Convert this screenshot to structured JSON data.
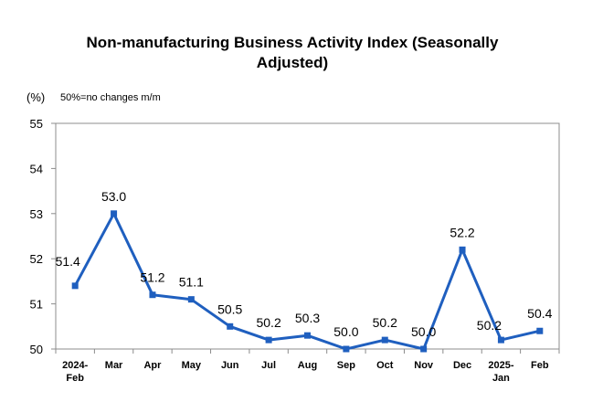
{
  "chart_data": {
    "type": "line",
    "title_line1": "Non-manufacturing Business Activity Index (Seasonally",
    "title_line2": "Adjusted)",
    "ylabel": "(%)",
    "note": "50%=no changes m/m",
    "ylim": [
      50,
      55
    ],
    "yticks": [
      "55",
      "54",
      "53",
      "52",
      "51",
      "50"
    ],
    "categories": [
      [
        "2024-",
        "Feb"
      ],
      [
        "Mar"
      ],
      [
        "Apr"
      ],
      [
        "May"
      ],
      [
        "Jun"
      ],
      [
        "Jul"
      ],
      [
        "Aug"
      ],
      [
        "Sep"
      ],
      [
        "Oct"
      ],
      [
        "Nov"
      ],
      [
        "Dec"
      ],
      [
        "2025-",
        "Jan"
      ],
      [
        "Feb"
      ]
    ],
    "values": [
      51.4,
      53.0,
      51.2,
      51.1,
      50.5,
      50.2,
      50.3,
      50.0,
      50.2,
      50.0,
      52.2,
      50.2,
      50.4
    ],
    "labels": [
      "51.4",
      "53.0",
      "51.2",
      "51.1",
      "50.5",
      "50.2",
      "50.3",
      "50.0",
      "50.2",
      "50.0",
      "52.2",
      "50.2",
      "50.4"
    ],
    "series_color": "#1f5fbf",
    "grid": false
  }
}
